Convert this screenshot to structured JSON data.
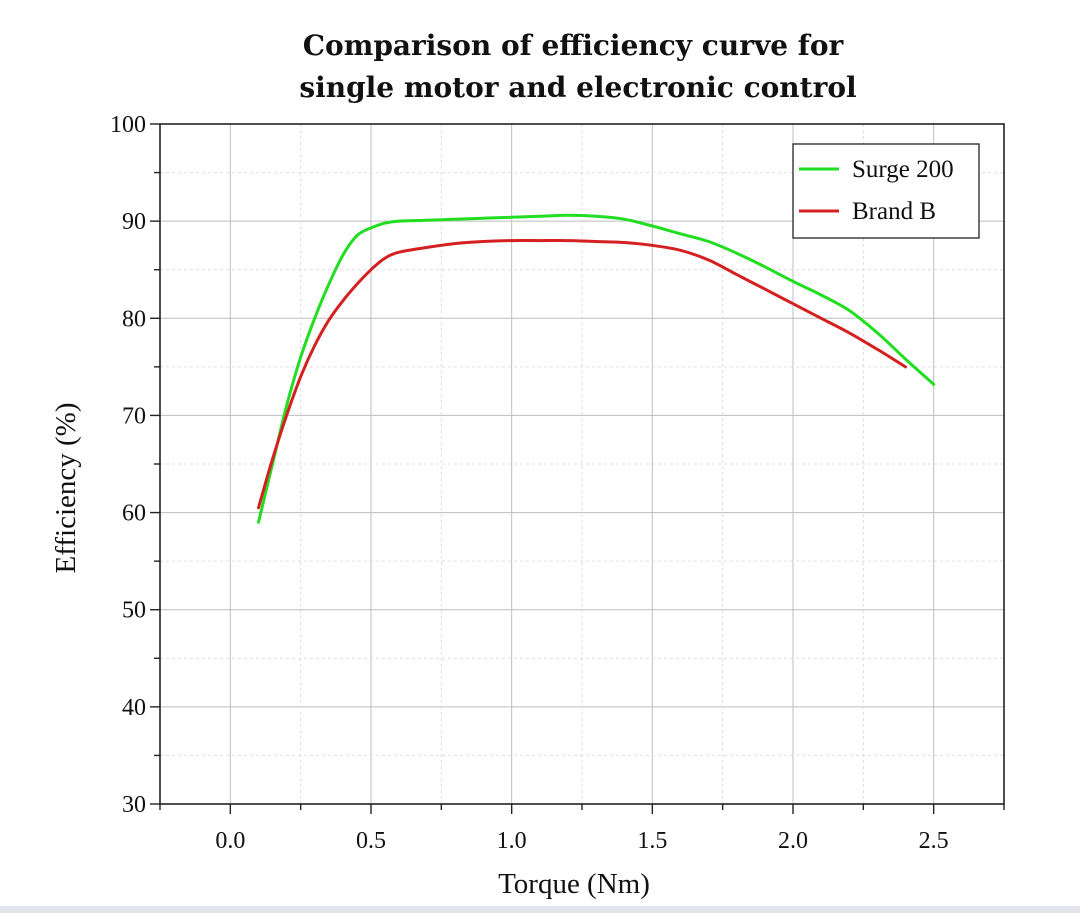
{
  "chart_data": {
    "type": "line",
    "title_lines": [
      "Comparison of efficiency curve for",
      "single motor and electronic control"
    ],
    "xlabel": "Torque (Nm)",
    "ylabel": "Efficiency (%)",
    "xlim": [
      -0.25,
      2.75
    ],
    "ylim": [
      30,
      100
    ],
    "x_ticks": [
      0.0,
      0.5,
      1.0,
      1.5,
      2.0,
      2.5
    ],
    "x_tick_labels": [
      "0.0",
      "0.5",
      "1.0",
      "1.5",
      "2.0",
      "2.5"
    ],
    "y_ticks": [
      30,
      40,
      50,
      60,
      70,
      80,
      90,
      100
    ],
    "y_tick_labels": [
      "30",
      "40",
      "50",
      "60",
      "70",
      "80",
      "90",
      "100"
    ],
    "grid": true,
    "legend_position": "top-right",
    "series": [
      {
        "name": "Surge 200",
        "color": "#22dd22",
        "points": [
          [
            0.1,
            59.0
          ],
          [
            0.15,
            65.0
          ],
          [
            0.2,
            71.0
          ],
          [
            0.25,
            76.0
          ],
          [
            0.3,
            80.0
          ],
          [
            0.35,
            83.5
          ],
          [
            0.4,
            86.5
          ],
          [
            0.45,
            88.5
          ],
          [
            0.5,
            89.3
          ],
          [
            0.55,
            89.8
          ],
          [
            0.6,
            90.0
          ],
          [
            0.7,
            90.1
          ],
          [
            0.8,
            90.2
          ],
          [
            0.9,
            90.3
          ],
          [
            1.0,
            90.4
          ],
          [
            1.1,
            90.5
          ],
          [
            1.2,
            90.6
          ],
          [
            1.3,
            90.5
          ],
          [
            1.4,
            90.2
          ],
          [
            1.5,
            89.5
          ],
          [
            1.6,
            88.7
          ],
          [
            1.7,
            87.9
          ],
          [
            1.8,
            86.7
          ],
          [
            1.9,
            85.3
          ],
          [
            2.0,
            83.8
          ],
          [
            2.1,
            82.4
          ],
          [
            2.2,
            80.8
          ],
          [
            2.3,
            78.5
          ],
          [
            2.4,
            75.8
          ],
          [
            2.5,
            73.2
          ]
        ]
      },
      {
        "name": "Brand B",
        "color": "#d42020",
        "points": [
          [
            0.1,
            60.5
          ],
          [
            0.15,
            65.5
          ],
          [
            0.2,
            70.0
          ],
          [
            0.25,
            74.0
          ],
          [
            0.3,
            77.2
          ],
          [
            0.35,
            79.8
          ],
          [
            0.4,
            81.8
          ],
          [
            0.45,
            83.5
          ],
          [
            0.5,
            85.0
          ],
          [
            0.55,
            86.2
          ],
          [
            0.6,
            86.8
          ],
          [
            0.7,
            87.3
          ],
          [
            0.8,
            87.7
          ],
          [
            0.9,
            87.9
          ],
          [
            1.0,
            88.0
          ],
          [
            1.1,
            88.0
          ],
          [
            1.2,
            88.0
          ],
          [
            1.3,
            87.9
          ],
          [
            1.4,
            87.8
          ],
          [
            1.5,
            87.5
          ],
          [
            1.6,
            87.0
          ],
          [
            1.7,
            86.0
          ],
          [
            1.8,
            84.5
          ],
          [
            1.9,
            83.0
          ],
          [
            2.0,
            81.5
          ],
          [
            2.1,
            80.0
          ],
          [
            2.2,
            78.5
          ],
          [
            2.3,
            76.8
          ],
          [
            2.4,
            75.0
          ]
        ]
      }
    ]
  }
}
